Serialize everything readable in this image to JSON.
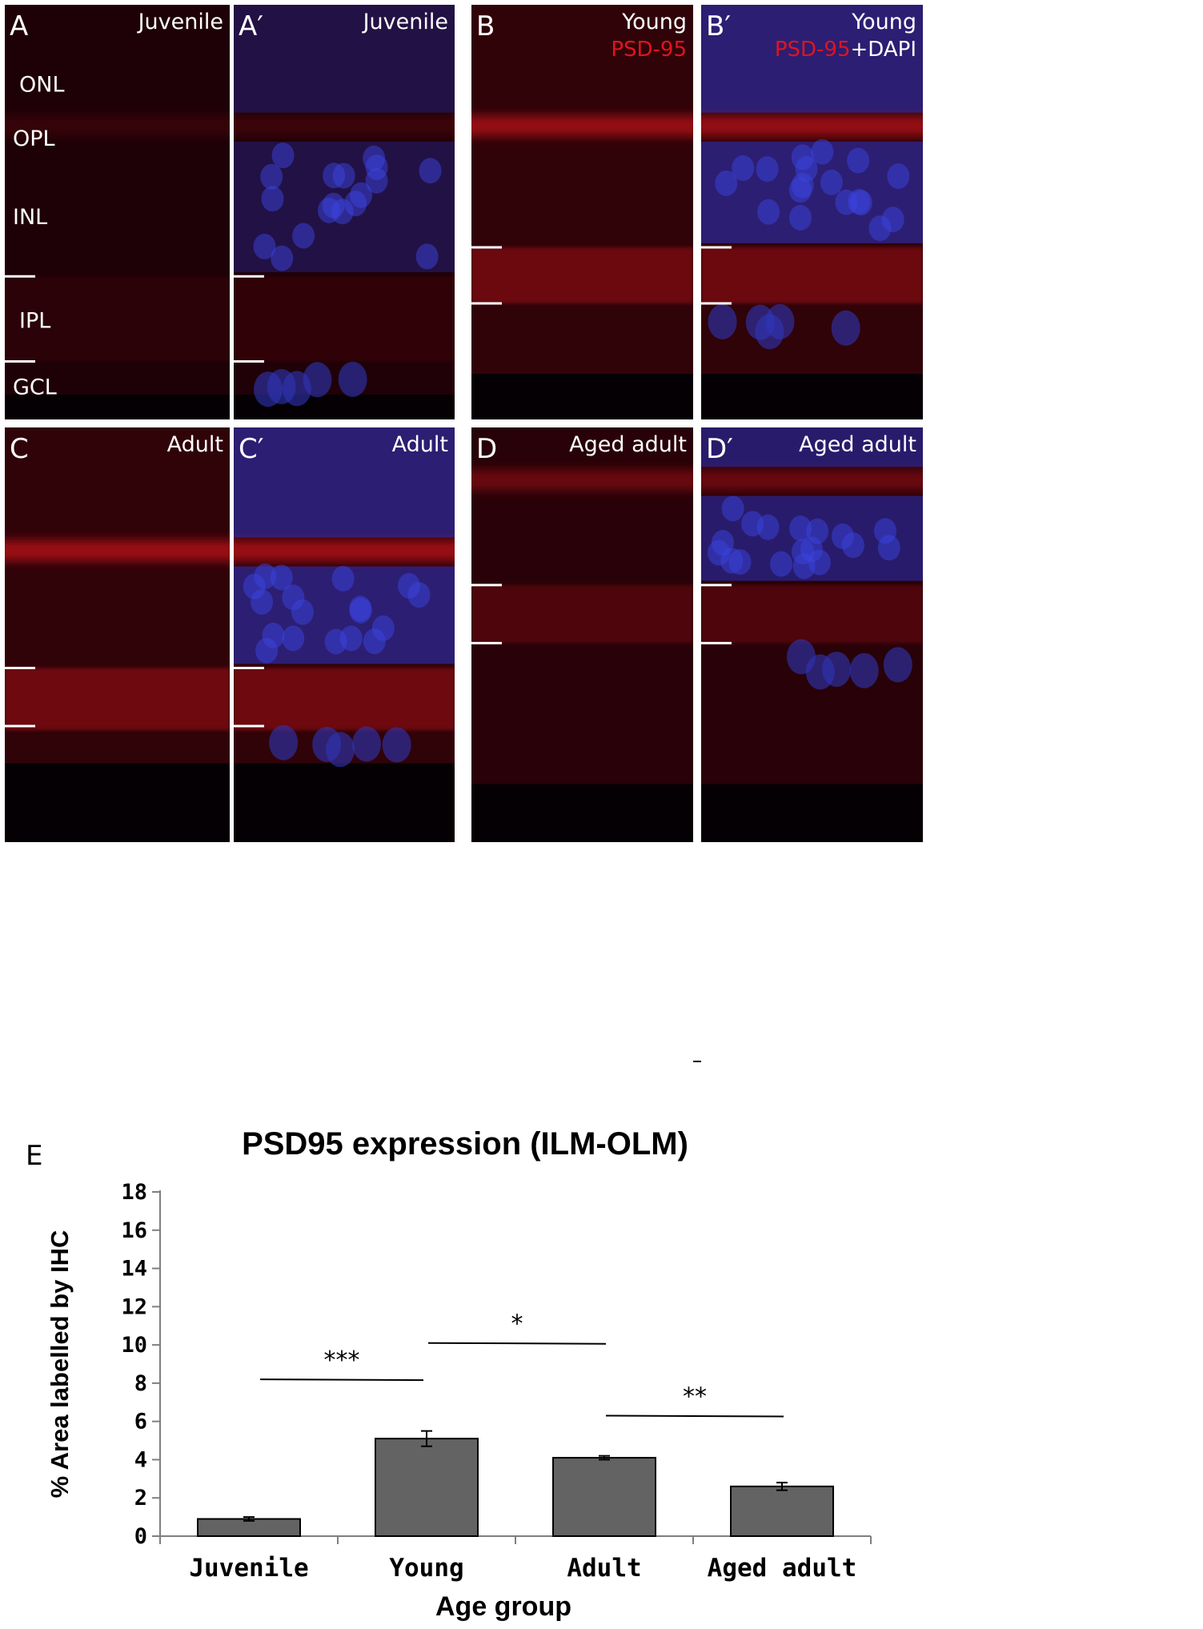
{
  "panels": [
    {
      "id": "A",
      "label": "A",
      "group": "Juvenile",
      "stain": "red",
      "layers": [
        "ONL",
        "OPL",
        "INL",
        "IPL",
        "GCL"
      ]
    },
    {
      "id": "A2",
      "label": "A′",
      "group": "Juvenile",
      "stain": "merge"
    },
    {
      "id": "B",
      "label": "B",
      "group": "Young",
      "stain": "red",
      "legend": [
        "PSD-95"
      ]
    },
    {
      "id": "B2",
      "label": "B′",
      "group": "Young",
      "stain": "merge",
      "legend": [
        "PSD-95",
        "+DAPI"
      ]
    },
    {
      "id": "C",
      "label": "C",
      "group": "Adult",
      "stain": "red"
    },
    {
      "id": "C2",
      "label": "C′",
      "group": "Adult",
      "stain": "merge"
    },
    {
      "id": "D",
      "label": "D",
      "group": "Aged adult",
      "stain": "red"
    },
    {
      "id": "D2",
      "label": "D′",
      "group": "Aged adult",
      "stain": "merge"
    }
  ],
  "colors": {
    "psd95": "#e0141e",
    "dapi": "#ffffff",
    "bar": "#636363",
    "micro_bg": "#120006"
  },
  "chart_data": {
    "type": "bar",
    "panel_label": "E",
    "title": "PSD95 expression (ILM-OLM)",
    "xlabel": "Age group",
    "ylabel": "% Area labelled by IHC",
    "categories": [
      "Juvenile",
      "Young",
      "Adult",
      "Aged adult"
    ],
    "values": [
      0.9,
      5.1,
      4.1,
      2.6
    ],
    "errors": [
      0.1,
      0.4,
      0.1,
      0.2
    ],
    "ylim": [
      0,
      18
    ],
    "yticks": [
      0,
      2,
      4,
      6,
      8,
      10,
      12,
      14,
      16,
      18
    ],
    "grid": false,
    "significance": [
      {
        "from": 0,
        "to": 1,
        "label": "***",
        "level": 8.2
      },
      {
        "from": 1,
        "to": 2,
        "label": "*",
        "level": 10.1
      },
      {
        "from": 2,
        "to": 3,
        "label": "**",
        "level": 6.3
      }
    ]
  }
}
